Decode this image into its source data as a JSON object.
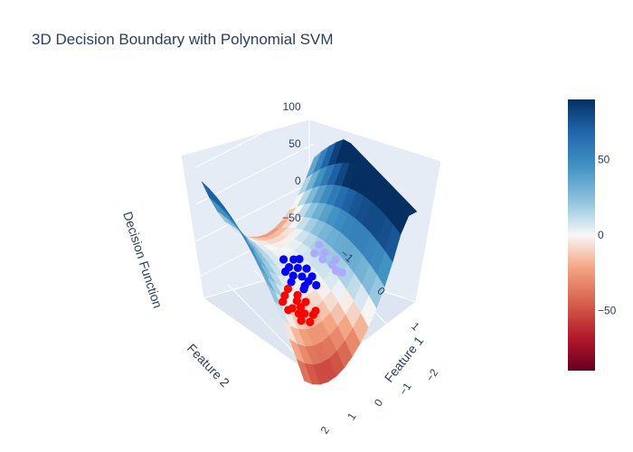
{
  "chart_data": {
    "type": "surface3d",
    "title": "3D Decision Boundary with Polynomial SVM",
    "x_axis": {
      "label": "Feature 1",
      "ticks": [
        -2,
        -1,
        0,
        1,
        2
      ],
      "tick_labels": [
        "−2",
        "−1",
        "0",
        "1",
        "2"
      ],
      "range": [
        -2.2,
        2.2
      ]
    },
    "y_axis": {
      "label": "Feature 2",
      "ticks": [
        -1,
        0,
        1
      ],
      "tick_labels": [
        "−1",
        "0",
        "1"
      ],
      "range": [
        -1.6,
        1.6
      ]
    },
    "z_axis": {
      "label": "Decision Function",
      "ticks": [
        -50,
        0,
        50,
        100
      ],
      "tick_labels": [
        "−50",
        "0",
        "50",
        "100"
      ],
      "range": [
        -80,
        110
      ]
    },
    "colorbar": {
      "colorscale": "RdBu",
      "range": [
        -90,
        90
      ],
      "ticks": [
        -50,
        0,
        50
      ],
      "tick_labels": [
        "−50",
        "0",
        "50"
      ]
    },
    "surface_samples": [
      {
        "feature_1": -1.5,
        "feature_2": -1.5,
        "z": 100
      },
      {
        "feature_1": 0.0,
        "feature_2": 0.0,
        "z": 0
      },
      {
        "feature_1": 2.0,
        "feature_2": 1.5,
        "z": -75
      }
    ],
    "series": [
      {
        "class": 0,
        "color": "#0000ff",
        "points": [
          [
            0.1,
            0.0
          ],
          [
            0.3,
            -0.1
          ],
          [
            0.4,
            0.1
          ],
          [
            0.2,
            -0.3
          ],
          [
            0.5,
            -0.2
          ],
          [
            0.6,
            0.0
          ],
          [
            0.35,
            0.25
          ],
          [
            0.15,
            0.2
          ],
          [
            0.55,
            0.3
          ],
          [
            0.7,
            -0.15
          ],
          [
            0.45,
            -0.4
          ],
          [
            0.25,
            0.4
          ],
          [
            0.8,
            0.1
          ],
          [
            0.05,
            -0.25
          ],
          [
            0.65,
            0.35
          ]
        ]
      },
      {
        "class": 0,
        "color": "#aaaaff",
        "points": [
          [
            -0.6,
            0.2
          ],
          [
            -0.5,
            0.0
          ],
          [
            -0.7,
            -0.1
          ],
          [
            -0.55,
            0.35
          ],
          [
            -0.8,
            0.15
          ],
          [
            -0.45,
            -0.2
          ],
          [
            -0.65,
            0.45
          ],
          [
            -0.75,
            -0.3
          ]
        ]
      },
      {
        "class": 1,
        "color": "#ff0000",
        "points": [
          [
            1.1,
            0.5
          ],
          [
            1.3,
            0.3
          ],
          [
            1.2,
            0.8
          ],
          [
            1.4,
            0.6
          ],
          [
            1.0,
            0.9
          ],
          [
            1.5,
            0.4
          ],
          [
            0.9,
            0.6
          ],
          [
            1.25,
            1.0
          ],
          [
            1.05,
            0.2
          ],
          [
            1.35,
            0.75
          ],
          [
            0.95,
            0.4
          ],
          [
            1.45,
            0.9
          ],
          [
            1.15,
            0.65
          ],
          [
            0.85,
            0.85
          ],
          [
            1.55,
            0.6
          ]
        ]
      }
    ],
    "grid": true
  }
}
